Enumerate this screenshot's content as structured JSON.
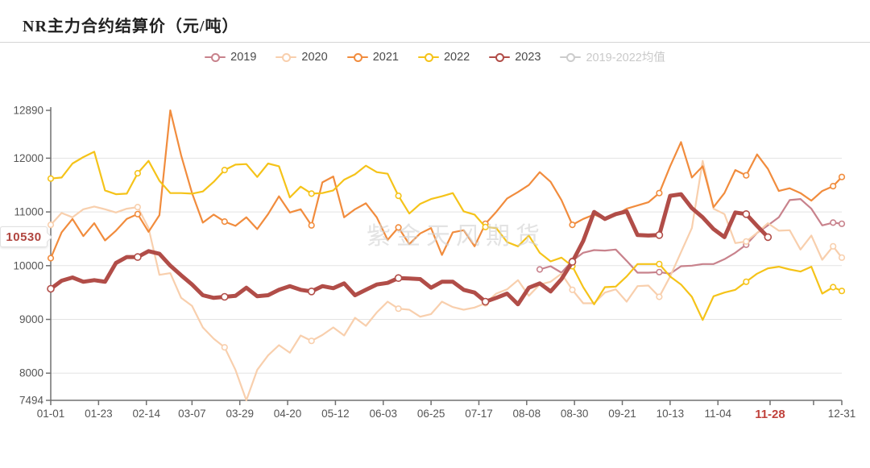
{
  "title": "NR主力合约结算价（元/吨）",
  "watermark": "紫金天风期货",
  "current_marker": {
    "value": "10530",
    "date_label": "11-28",
    "color": "#b0453f"
  },
  "legend": {
    "items": [
      {
        "label": "2019",
        "color": "#c8828c",
        "active": true
      },
      {
        "label": "2020",
        "color": "#f8cfad",
        "active": true
      },
      {
        "label": "2021",
        "color": "#f18c3d",
        "active": true
      },
      {
        "label": "2022",
        "color": "#f5c319",
        "active": true
      },
      {
        "label": "2023",
        "color": "#b14d48",
        "active": true
      },
      {
        "label": "2019-2022均值",
        "color": "#cccccc",
        "active": false
      }
    ]
  },
  "axes": {
    "y_ticks": [
      12890,
      12000,
      11000,
      10000,
      9000,
      8000,
      7494
    ],
    "x_ticks": [
      {
        "day": 1,
        "label": "01-01"
      },
      {
        "day": 23,
        "label": "01-23"
      },
      {
        "day": 45,
        "label": "02-14"
      },
      {
        "day": 66,
        "label": "03-07"
      },
      {
        "day": 88,
        "label": "03-29"
      },
      {
        "day": 110,
        "label": "04-20"
      },
      {
        "day": 132,
        "label": "05-12"
      },
      {
        "day": 154,
        "label": "06-03"
      },
      {
        "day": 176,
        "label": "06-25"
      },
      {
        "day": 198,
        "label": "07-17"
      },
      {
        "day": 220,
        "label": "08-08"
      },
      {
        "day": 242,
        "label": "08-30"
      },
      {
        "day": 264,
        "label": "09-21"
      },
      {
        "day": 286,
        "label": "10-13"
      },
      {
        "day": 308,
        "label": "11-04"
      },
      {
        "day": 352,
        "label": ""
      },
      {
        "day": 365,
        "label": "12-31"
      }
    ],
    "current_tick": {
      "day": 332,
      "label": "11-28"
    },
    "label_color": "#555555",
    "axis_color": "#707070",
    "grid_color": "#e3e3e3",
    "red_color": "#c0423c"
  },
  "chart_data": {
    "type": "line",
    "title": "NR主力合约结算价（元/吨）",
    "ylim": [
      7494,
      12890
    ],
    "grid": true,
    "legend_position": "top",
    "dates": [
      "01-01",
      "01-06",
      "01-11",
      "01-16",
      "01-21",
      "01-26",
      "01-31",
      "02-05",
      "02-10",
      "02-15",
      "02-20",
      "02-25",
      "03-02",
      "03-07",
      "03-12",
      "03-17",
      "03-22",
      "03-27",
      "04-01",
      "04-06",
      "04-11",
      "04-16",
      "04-21",
      "04-26",
      "05-01",
      "05-06",
      "05-11",
      "05-16",
      "05-21",
      "05-26",
      "05-31",
      "06-05",
      "06-10",
      "06-15",
      "06-20",
      "06-25",
      "06-30",
      "07-05",
      "07-10",
      "07-15",
      "07-20",
      "07-25",
      "07-30",
      "08-04",
      "08-09",
      "08-14",
      "08-19",
      "08-24",
      "08-29",
      "09-03",
      "09-08",
      "09-13",
      "09-18",
      "09-23",
      "09-28",
      "10-03",
      "10-08",
      "10-13",
      "10-18",
      "10-23",
      "10-28",
      "11-02",
      "11-07",
      "11-12",
      "11-17",
      "11-22",
      "11-27",
      "12-02",
      "12-07",
      "12-12",
      "12-17",
      "12-22",
      "12-27",
      "12-31"
    ],
    "series": [
      {
        "name": "2019",
        "color": "#c8828c",
        "width": 2.2,
        "values": [
          null,
          null,
          null,
          null,
          null,
          null,
          null,
          null,
          null,
          null,
          null,
          null,
          null,
          null,
          null,
          null,
          null,
          null,
          null,
          null,
          null,
          null,
          null,
          null,
          null,
          null,
          null,
          null,
          null,
          null,
          null,
          null,
          null,
          null,
          null,
          null,
          null,
          null,
          null,
          null,
          null,
          null,
          null,
          null,
          null,
          9930,
          9990,
          9870,
          10090,
          10240,
          10290,
          10280,
          10300,
          10090,
          9870,
          9870,
          9880,
          9850,
          9990,
          10000,
          10030,
          10030,
          10120,
          10240,
          10390,
          10610,
          10750,
          10900,
          11220,
          11240,
          11060,
          10750,
          10800,
          10780
        ]
      },
      {
        "name": "2020",
        "color": "#f8cfad",
        "width": 2.2,
        "values": [
          10760,
          10980,
          10900,
          11050,
          11100,
          11050,
          10990,
          11060,
          11090,
          10700,
          9830,
          9860,
          9400,
          9250,
          8850,
          8640,
          8480,
          8060,
          7494,
          8060,
          8330,
          8520,
          8380,
          8700,
          8600,
          8710,
          8850,
          8700,
          9030,
          8880,
          9130,
          9330,
          9200,
          9180,
          9050,
          9100,
          9330,
          9230,
          9180,
          9220,
          9300,
          9480,
          9560,
          9730,
          9440,
          9650,
          9700,
          9850,
          9550,
          9300,
          9300,
          9500,
          9560,
          9330,
          9620,
          9630,
          9420,
          9800,
          10250,
          10700,
          11950,
          11060,
          10960,
          10420,
          10450,
          10610,
          10790,
          10650,
          10660,
          10300,
          10560,
          10110,
          10360,
          10150
        ]
      },
      {
        "name": "2021",
        "color": "#f18c3d",
        "width": 2.2,
        "values": [
          10140,
          10620,
          10870,
          10550,
          10790,
          10470,
          10650,
          10870,
          10960,
          10630,
          10940,
          12890,
          12050,
          11350,
          10800,
          10950,
          10820,
          10740,
          10900,
          10680,
          10960,
          11290,
          10990,
          11050,
          10750,
          11550,
          11660,
          10900,
          11050,
          11160,
          10900,
          10480,
          10710,
          10400,
          10600,
          10700,
          10200,
          10620,
          10660,
          10360,
          10780,
          11000,
          11250,
          11370,
          11500,
          11740,
          11560,
          11220,
          10760,
          10870,
          10950,
          10870,
          10940,
          11060,
          11120,
          11180,
          11350,
          11850,
          12300,
          11640,
          11850,
          11090,
          11350,
          11780,
          11680,
          12070,
          11800,
          11390,
          11440,
          11350,
          11210,
          11390,
          11480,
          11650
        ]
      },
      {
        "name": "2022",
        "color": "#f5c319",
        "width": 2.2,
        "values": [
          11620,
          11640,
          11900,
          12020,
          12120,
          11400,
          11330,
          11340,
          11720,
          11950,
          11580,
          11350,
          11350,
          11340,
          11380,
          11560,
          11780,
          11880,
          11890,
          11650,
          11900,
          11850,
          11270,
          11470,
          11340,
          11350,
          11400,
          11600,
          11700,
          11860,
          11740,
          11710,
          11300,
          10970,
          11150,
          11240,
          11290,
          11350,
          11010,
          10950,
          10720,
          10700,
          10440,
          10360,
          10560,
          10240,
          10080,
          10150,
          9990,
          9600,
          9280,
          9600,
          9610,
          9800,
          10030,
          10030,
          10030,
          9800,
          9650,
          9420,
          8990,
          9430,
          9500,
          9550,
          9700,
          9850,
          9950,
          9980,
          9930,
          9890,
          9980,
          9480,
          9600,
          9530
        ]
      },
      {
        "name": "2023",
        "color": "#b14d48",
        "width": 5,
        "values": [
          9570,
          9720,
          9780,
          9700,
          9730,
          9700,
          10050,
          10160,
          10160,
          10270,
          10220,
          10000,
          9820,
          9650,
          9450,
          9400,
          9420,
          9440,
          9590,
          9430,
          9450,
          9550,
          9620,
          9550,
          9520,
          9620,
          9580,
          9670,
          9450,
          9550,
          9650,
          9680,
          9770,
          9760,
          9750,
          9590,
          9700,
          9700,
          9550,
          9500,
          9330,
          9400,
          9480,
          9280,
          9590,
          9670,
          9520,
          9750,
          10070,
          10460,
          11000,
          10870,
          10960,
          11010,
          10570,
          10560,
          10570,
          11300,
          11330,
          11070,
          10900,
          10680,
          10530,
          10990,
          10960,
          10740,
          10530,
          null,
          null,
          null,
          null,
          null,
          null,
          null
        ]
      },
      {
        "name": "2019-2022均值",
        "color": "#cccccc",
        "width": 2,
        "hidden": true,
        "values": []
      }
    ]
  }
}
